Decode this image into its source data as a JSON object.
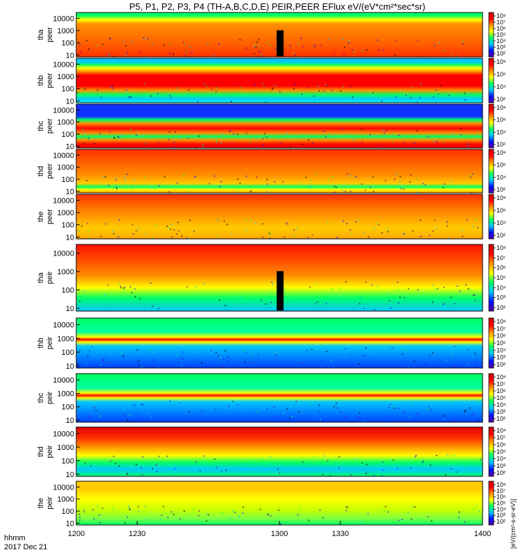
{
  "chart_data": {
    "type": "heatmap",
    "title": "P5, P1, P2, P3, P4 (TH-A,B,C,D,E) PEIR,PEER EFlux eV/(eV*cm²*sec*sr)",
    "time_label": "hhmm",
    "date_label": "2017 Dec 21",
    "x_ticks": [
      "1200",
      "1230",
      "1300",
      "1330",
      "1400"
    ],
    "x_range": [
      1200,
      1400
    ],
    "y_scale": "log",
    "y_range": [
      7,
      30000
    ],
    "colormap": [
      "#5a00a0",
      "#0010ff",
      "#00c8ff",
      "#00ff64",
      "#ffff00",
      "#ff9000",
      "#ff0000",
      "#c80000"
    ],
    "colorbar_label": "[eV/(cm²-s-sr-eV)]",
    "panels": [
      {
        "label_top": "tha",
        "label_bottom": "peer",
        "y_ticks": [
          "10000",
          "1000",
          "100",
          "10"
        ],
        "cb_ticks": [
          "10⁸",
          "10⁷",
          "10⁶",
          "10⁵",
          "10⁴",
          "10³",
          "10²"
        ],
        "profile": [
          [
            7,
            "#00ff64"
          ],
          [
            16,
            "#ffff00"
          ],
          [
            26,
            "#ff9000"
          ],
          [
            70,
            "#ff6000"
          ],
          [
            100,
            "#ff3000"
          ]
        ]
      },
      {
        "label_top": "thb",
        "label_bottom": "peer",
        "y_ticks": [
          "10000",
          "1000",
          "100",
          "10"
        ],
        "cb_ticks": [
          "10⁸",
          "10⁶",
          "10⁴",
          "10²"
        ],
        "profile": [
          [
            0,
            "#00c8ff"
          ],
          [
            8,
            "#00c8ff"
          ],
          [
            14,
            "#00ff64"
          ],
          [
            22,
            "#ffff00"
          ],
          [
            30,
            "#ff9000"
          ],
          [
            38,
            "#ff0000"
          ],
          [
            62,
            "#ff0000"
          ],
          [
            72,
            "#ff9000"
          ],
          [
            82,
            "#00ff64"
          ],
          [
            92,
            "#00c8ff"
          ],
          [
            100,
            "#00ffff"
          ]
        ]
      },
      {
        "label_top": "thc",
        "label_bottom": "peer",
        "y_ticks": [
          "10000",
          "1000",
          "100",
          "10"
        ],
        "cb_ticks": [
          "10⁸",
          "10⁶",
          "10⁴",
          "10²"
        ],
        "profile": [
          [
            0,
            "#1030ff"
          ],
          [
            28,
            "#1030ff"
          ],
          [
            36,
            "#00ff64"
          ],
          [
            44,
            "#ff9000"
          ],
          [
            55,
            "#ff0000"
          ],
          [
            66,
            "#ff9000"
          ],
          [
            74,
            "#00ff64"
          ],
          [
            82,
            "#ff9000"
          ],
          [
            92,
            "#ff0000"
          ],
          [
            100,
            "#ff0000"
          ]
        ]
      },
      {
        "label_top": "thd",
        "label_bottom": "peer",
        "y_ticks": [
          "10000",
          "1000",
          "100",
          "10"
        ],
        "cb_ticks": [
          "10⁸",
          "10⁶",
          "10⁴",
          "10²"
        ],
        "profile": [
          [
            0,
            "#ff3000"
          ],
          [
            30,
            "#ff6000"
          ],
          [
            60,
            "#ff9000"
          ],
          [
            78,
            "#ffcc00"
          ],
          [
            86,
            "#00ff64"
          ],
          [
            92,
            "#ffff00"
          ],
          [
            100,
            "#ff9000"
          ]
        ]
      },
      {
        "label_top": "the",
        "label_bottom": "peer",
        "y_ticks": [
          "10000",
          "1000",
          "100",
          "10"
        ],
        "cb_ticks": [
          "10⁸",
          "10⁶",
          "10⁴",
          "10²"
        ],
        "profile": [
          [
            0,
            "#ff3000"
          ],
          [
            20,
            "#ff6000"
          ],
          [
            45,
            "#ff9000"
          ],
          [
            75,
            "#ffcc00"
          ],
          [
            95,
            "#ffb000"
          ],
          [
            100,
            "#ff9000"
          ]
        ]
      },
      {
        "label_top": "tha",
        "label_bottom": "peir",
        "y_ticks": [
          "10000",
          "1000",
          "100",
          "10"
        ],
        "cb_ticks": [
          "10⁸",
          "10⁷",
          "10⁶",
          "10⁵",
          "10⁴",
          "10³",
          "10²"
        ],
        "profile": [
          [
            0,
            "#ff1000"
          ],
          [
            25,
            "#ff5000"
          ],
          [
            48,
            "#ff9000"
          ],
          [
            65,
            "#ffff00"
          ],
          [
            80,
            "#00ff64"
          ],
          [
            100,
            "#00c8ff"
          ]
        ]
      },
      {
        "label_top": "thb",
        "label_bottom": "peir",
        "y_ticks": [
          "10000",
          "1000",
          "100",
          "10"
        ],
        "cb_ticks": [
          "10⁸",
          "10⁷",
          "10⁶",
          "10⁵",
          "10⁴",
          "10³",
          "10²"
        ],
        "profile": [
          [
            0,
            "#00ff64"
          ],
          [
            28,
            "#00ffa0"
          ],
          [
            38,
            "#ffff00"
          ],
          [
            43,
            "#ff0000"
          ],
          [
            48,
            "#ffff00"
          ],
          [
            56,
            "#00c8ff"
          ],
          [
            100,
            "#0040ff"
          ]
        ]
      },
      {
        "label_top": "thc",
        "label_bottom": "peir",
        "y_ticks": [
          "10000",
          "1000",
          "100",
          "10"
        ],
        "cb_ticks": [
          "10⁸",
          "10⁷",
          "10⁶",
          "10⁵",
          "10⁴",
          "10³",
          "10²"
        ],
        "profile": [
          [
            0,
            "#00ff64"
          ],
          [
            30,
            "#00ffa0"
          ],
          [
            40,
            "#ffff00"
          ],
          [
            45,
            "#ff0000"
          ],
          [
            50,
            "#ffff00"
          ],
          [
            58,
            "#00c8ff"
          ],
          [
            100,
            "#0040ff"
          ]
        ]
      },
      {
        "label_top": "thd",
        "label_bottom": "peir",
        "y_ticks": [
          "10000",
          "1000",
          "100",
          "10"
        ],
        "cb_ticks": [
          "10⁸",
          "10⁷",
          "10⁶",
          "10⁵",
          "10⁴",
          "10³",
          "10²"
        ],
        "profile": [
          [
            0,
            "#e00000"
          ],
          [
            22,
            "#ff3000"
          ],
          [
            40,
            "#ff9000"
          ],
          [
            58,
            "#ffff00"
          ],
          [
            72,
            "#00ff64"
          ],
          [
            86,
            "#00c8ff"
          ],
          [
            100,
            "#00ff64"
          ]
        ]
      },
      {
        "label_top": "the",
        "label_bottom": "peir",
        "y_ticks": [
          "10000",
          "1000",
          "100",
          "10"
        ],
        "cb_ticks": [
          "10⁸",
          "10⁷",
          "10⁶",
          "10⁵",
          "10⁴",
          "10³",
          "10²"
        ],
        "profile": [
          [
            0,
            "#ffcc00"
          ],
          [
            18,
            "#ffcc00"
          ],
          [
            40,
            "#ffff00"
          ],
          [
            65,
            "#c8ff00"
          ],
          [
            85,
            "#80ff40"
          ],
          [
            100,
            "#00ff64"
          ]
        ]
      }
    ]
  }
}
